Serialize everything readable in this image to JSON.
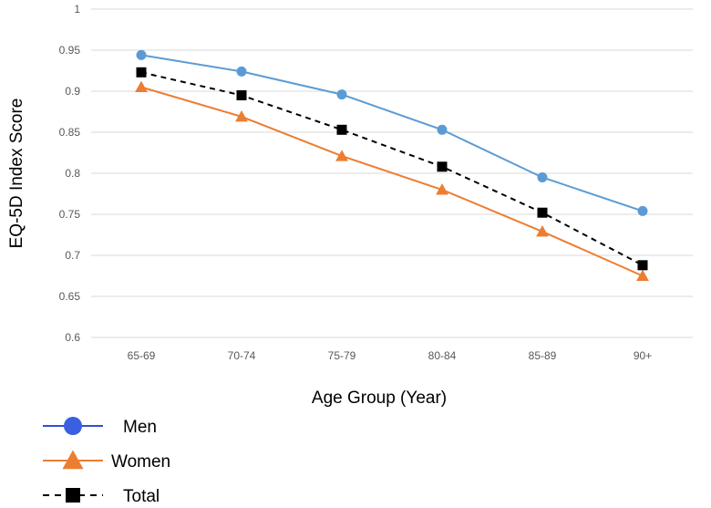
{
  "chart_data": {
    "type": "line",
    "title": "",
    "xlabel": "Age Group (Year)",
    "ylabel": "EQ-5D  Index Score",
    "categories": [
      "65-69",
      "70-74",
      "75-79",
      "80-84",
      "85-89",
      "90+"
    ],
    "ylim": [
      0.6,
      1.0
    ],
    "yticks": [
      "0.6",
      "0.65",
      "0.7",
      "0.75",
      "0.8",
      "0.85",
      "0.9",
      "0.95",
      "1"
    ],
    "grid": true,
    "legend_position": "bottom-left",
    "series": [
      {
        "name": "Men",
        "values": [
          0.944,
          0.924,
          0.896,
          0.853,
          0.795,
          0.754
        ],
        "color": "#5B9BD5",
        "marker": "circle",
        "dash": "solid"
      },
      {
        "name": "Women",
        "values": [
          0.905,
          0.869,
          0.821,
          0.78,
          0.729,
          0.675
        ],
        "color": "#ED7D31",
        "marker": "triangle",
        "dash": "solid"
      },
      {
        "name": "Total",
        "values": [
          0.923,
          0.895,
          0.853,
          0.808,
          0.752,
          0.688
        ],
        "color": "#000000",
        "marker": "square",
        "dash": "dashed"
      }
    ],
    "legend": [
      {
        "label": "Men",
        "line_color": "#2F4FD8",
        "marker_color": "#3A5FE0",
        "marker": "circle",
        "dash": "solid"
      },
      {
        "label": "Women",
        "line_color": "#ED7D31",
        "marker_color": "#ED7D31",
        "marker": "triangle",
        "dash": "solid"
      },
      {
        "label": "Total",
        "line_color": "#000000",
        "marker_color": "#000000",
        "marker": "square",
        "dash": "dashed"
      }
    ]
  }
}
